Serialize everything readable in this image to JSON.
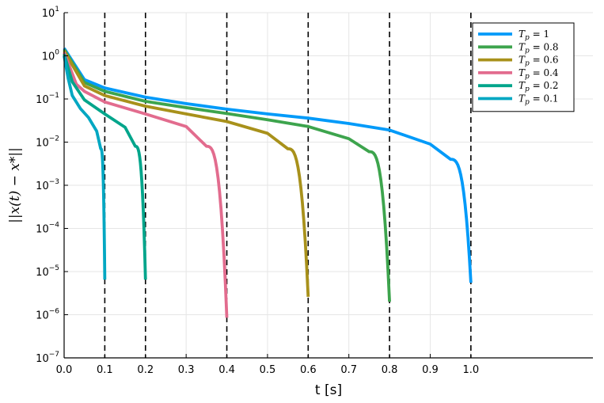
{
  "chart_data": {
    "type": "line",
    "title": "",
    "xlabel": "t [s]",
    "ylabel": "||x(t) − x*||",
    "xlim": [
      0.0,
      1.3
    ],
    "ylim_log10": [
      -7,
      1
    ],
    "yscale": "log",
    "grid": true,
    "legend_position": "top-right",
    "x_ticks": [
      "0.0",
      "0.1",
      "0.2",
      "0.3",
      "0.4",
      "0.5",
      "0.6",
      "0.7",
      "0.8",
      "0.9",
      "1.0"
    ],
    "x_tick_values": [
      0.0,
      0.1,
      0.2,
      0.3,
      0.4,
      0.5,
      0.6,
      0.7,
      0.8,
      0.9,
      1.0
    ],
    "y_ticks": [
      {
        "exp": 1,
        "base": "10",
        "sup": "1"
      },
      {
        "exp": 0,
        "base": "10",
        "sup": "0"
      },
      {
        "exp": -1,
        "base": "10",
        "sup": "−1"
      },
      {
        "exp": -2,
        "base": "10",
        "sup": "−2"
      },
      {
        "exp": -3,
        "base": "10",
        "sup": "−3"
      },
      {
        "exp": -4,
        "base": "10",
        "sup": "−4"
      },
      {
        "exp": -5,
        "base": "10",
        "sup": "−5"
      },
      {
        "exp": -6,
        "base": "10",
        "sup": "−6"
      },
      {
        "exp": -7,
        "base": "10",
        "sup": "−7"
      }
    ],
    "vlines": [
      0.1,
      0.2,
      0.4,
      0.6,
      0.8,
      1.0
    ],
    "series": [
      {
        "name": "T_p = 1",
        "legend_var": "T",
        "legend_sub": "p",
        "legend_val": " = 1",
        "color": "#009AF9",
        "Tp": 1.0,
        "y_start": 1.5,
        "y_end": 5.5e-06,
        "points": [
          [
            0.05,
            0.28
          ],
          [
            0.1,
            0.18
          ],
          [
            0.2,
            0.11
          ],
          [
            0.3,
            0.078
          ],
          [
            0.4,
            0.058
          ],
          [
            0.5,
            0.045
          ],
          [
            0.6,
            0.036
          ],
          [
            0.7,
            0.027
          ],
          [
            0.8,
            0.019
          ],
          [
            0.9,
            0.009
          ],
          [
            0.95,
            0.004
          ]
        ]
      },
      {
        "name": "T_p = 0.8",
        "legend_var": "T",
        "legend_sub": "p",
        "legend_val": " = 0.8",
        "color": "#3DA44D",
        "Tp": 0.8,
        "y_start": 1.4,
        "y_end": 2e-06,
        "points": [
          [
            0.05,
            0.24
          ],
          [
            0.1,
            0.15
          ],
          [
            0.2,
            0.088
          ],
          [
            0.3,
            0.063
          ],
          [
            0.4,
            0.046
          ],
          [
            0.5,
            0.033
          ],
          [
            0.6,
            0.023
          ],
          [
            0.7,
            0.012
          ],
          [
            0.75,
            0.006
          ]
        ]
      },
      {
        "name": "T_p = 0.6",
        "legend_var": "T",
        "legend_sub": "p",
        "legend_val": " = 0.6",
        "color": "#A8911B",
        "Tp": 0.6,
        "y_start": 1.3,
        "y_end": 2.6e-06,
        "points": [
          [
            0.05,
            0.2
          ],
          [
            0.1,
            0.12
          ],
          [
            0.2,
            0.068
          ],
          [
            0.3,
            0.045
          ],
          [
            0.4,
            0.03
          ],
          [
            0.5,
            0.016
          ],
          [
            0.55,
            0.007
          ]
        ]
      },
      {
        "name": "T_p = 0.4",
        "legend_var": "T",
        "legend_sub": "p",
        "legend_val": " = 0.4",
        "color": "#E26C8E",
        "Tp": 0.4,
        "y_start": 1.2,
        "y_end": 8.5e-07,
        "points": [
          [
            0.03,
            0.22
          ],
          [
            0.05,
            0.15
          ],
          [
            0.1,
            0.085
          ],
          [
            0.2,
            0.045
          ],
          [
            0.3,
            0.023
          ],
          [
            0.35,
            0.008
          ]
        ]
      },
      {
        "name": "T_p = 0.2",
        "legend_var": "T",
        "legend_sub": "p",
        "legend_val": " = 0.2",
        "color": "#00A58B",
        "Tp": 0.2,
        "y_start": 1.1,
        "y_end": 6.5e-06,
        "points": [
          [
            0.02,
            0.25
          ],
          [
            0.05,
            0.095
          ],
          [
            0.1,
            0.045
          ],
          [
            0.15,
            0.022
          ],
          [
            0.175,
            0.008
          ]
        ]
      },
      {
        "name": "T_p = 0.1",
        "legend_var": "T",
        "legend_sub": "p",
        "legend_val": " = 0.1",
        "color": "#00A7C2",
        "Tp": 0.1,
        "y_start": 1.0,
        "y_end": 6.5e-06,
        "points": [
          [
            0.01,
            0.3
          ],
          [
            0.02,
            0.12
          ],
          [
            0.04,
            0.06
          ],
          [
            0.06,
            0.037
          ],
          [
            0.08,
            0.018
          ],
          [
            0.09,
            0.007
          ]
        ]
      }
    ]
  }
}
